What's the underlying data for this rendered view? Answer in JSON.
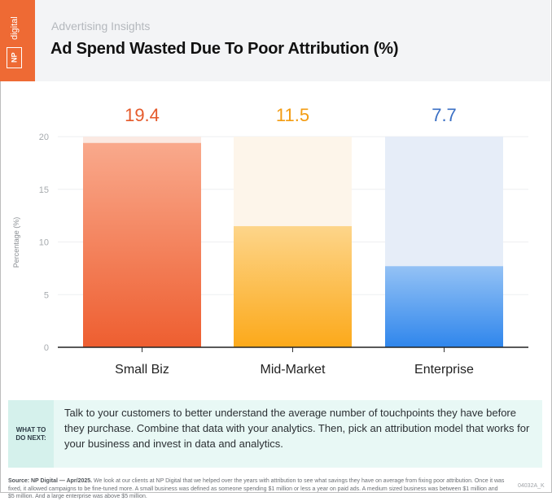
{
  "brand": {
    "logo_np": "NP",
    "logo_digital": "digital",
    "brand_color": "#ee6a34"
  },
  "header": {
    "subtitle": "Advertising Insights",
    "title": "Ad Spend Wasted Due To Poor Attribution (%)"
  },
  "chart_data": {
    "type": "bar",
    "title": "Ad Spend Wasted Due To Poor Attribution (%)",
    "ylabel": "Percentage (%)",
    "xlabel": "",
    "categories": [
      "Small Biz",
      "Mid-Market",
      "Enterprise"
    ],
    "values": [
      19.4,
      11.5,
      7.7
    ],
    "value_labels": [
      "19.4",
      "11.5",
      "7.7"
    ],
    "ylim": [
      0,
      20
    ],
    "yticks": [
      0,
      5,
      10,
      15,
      20
    ],
    "grid": true,
    "colors": [
      {
        "top": "#f9a98c",
        "bottom": "#ee5e30",
        "track": "#fbe9e2",
        "label": "#e55a2b"
      },
      {
        "top": "#fdd58a",
        "bottom": "#fca91a",
        "track": "#fdf5ea",
        "label": "#f39c12"
      },
      {
        "top": "#94c2f5",
        "bottom": "#2f86ec",
        "track": "#e6edf8",
        "label": "#3a6fc4"
      }
    ]
  },
  "tip": {
    "label_line1": "WHAT TO",
    "label_line2": "DO NEXT:",
    "text": "Talk to your customers to better understand the average number of touchpoints they have before they purchase. Combine that data with your analytics. Then, pick an attribution model that works for your business and invest in data and analytics."
  },
  "footer": {
    "source_label": "Source: NP Digital — Apr/2025.",
    "source_text": " We look at our clients at NP Digital that we helped over the years with attribution to see what savings they have on average from fixing poor attribution. Once it was fixed, it allowed campaigns to be fine-tuned more. A small business was defined as someone spending $1 million or less a year on paid ads. A medium sized business was between $1 million and $5 million. And a large enterprise was above $5 million.",
    "code": "04032A_K"
  }
}
